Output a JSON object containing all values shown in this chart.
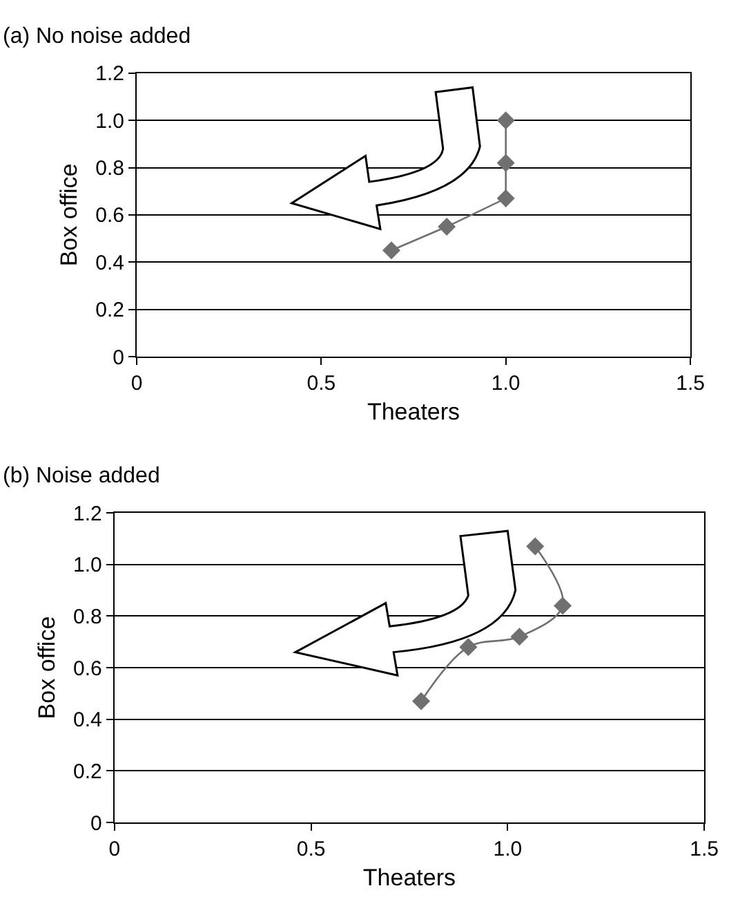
{
  "chart_data": [
    {
      "type": "line",
      "title": "(a) No noise added",
      "xlabel": "Theaters",
      "ylabel": "Box office",
      "series": [
        {
          "color": "#707070",
          "x": [
            1.0,
            1.0,
            1.0,
            0.84,
            0.69
          ],
          "values": [
            1.0,
            0.82,
            0.67,
            0.55,
            0.45
          ]
        }
      ],
      "xlim": [
        0,
        1.5
      ],
      "xticks": [
        0,
        0.5,
        {
          "value": 1.0,
          "label": "1.0"
        },
        1.5
      ],
      "ylim": [
        0,
        1.2
      ],
      "yticks": [
        0,
        0.2,
        0.4,
        0.6,
        0.8,
        {
          "value": 1.0,
          "label": "1.0"
        },
        1.2
      ],
      "grid": "y",
      "marker": "diamond",
      "line_style": "solid"
    },
    {
      "type": "line",
      "title": "(b) Noise added",
      "xlabel": "Theaters",
      "ylabel": "Box office",
      "series": [
        {
          "color": "#707070",
          "x": [
            1.07,
            1.14,
            1.03,
            0.9,
            0.78
          ],
          "values": [
            1.07,
            0.84,
            0.72,
            0.68,
            0.47
          ]
        }
      ],
      "xlim": [
        0,
        1.5
      ],
      "xticks": [
        0,
        0.5,
        {
          "value": 1.0,
          "label": "1.0"
        },
        1.5
      ],
      "ylim": [
        0,
        1.2
      ],
      "yticks": [
        0,
        0.2,
        0.4,
        0.6,
        0.8,
        {
          "value": 1.0,
          "label": "1.0"
        },
        1.2
      ],
      "grid": "y",
      "marker": "diamond",
      "line_style": "solid"
    }
  ]
}
